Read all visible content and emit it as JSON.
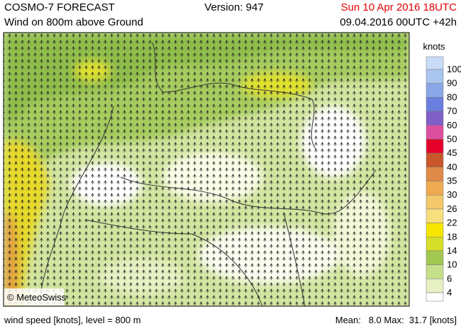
{
  "header": {
    "title": "COSMO-7 FORECAST",
    "subtitle": "Wind on 800m above Ground",
    "version": "Version: 947",
    "valid": "Sun 10 Apr 2016 18UTC",
    "run": "09.04.2016 00UTC +42h"
  },
  "map": {
    "copyright": "© MeteoSwiss"
  },
  "legend": {
    "unit": "knots",
    "levels": [
      "100",
      "90",
      "80",
      "70",
      "60",
      "50",
      "45",
      "40",
      "35",
      "30",
      "26",
      "22",
      "18",
      "14",
      "10",
      "6",
      "4"
    ],
    "colors": [
      "#c9dcf7",
      "#a9c6f0",
      "#8aa8e8",
      "#6a7fdf",
      "#7f5fc8",
      "#dc4f9e",
      "#e4002a",
      "#c8562a",
      "#e08a48",
      "#f0aa52",
      "#f3c96c",
      "#f8df7e",
      "#f6e600",
      "#d6df27",
      "#a2c852",
      "#c6df8a",
      "#e6f0c2",
      "#ffffff"
    ]
  },
  "footer": {
    "left": "wind speed [knots], level = 800 m",
    "stats": "Mean:   8.0 Max:  31.7 [knots]"
  }
}
